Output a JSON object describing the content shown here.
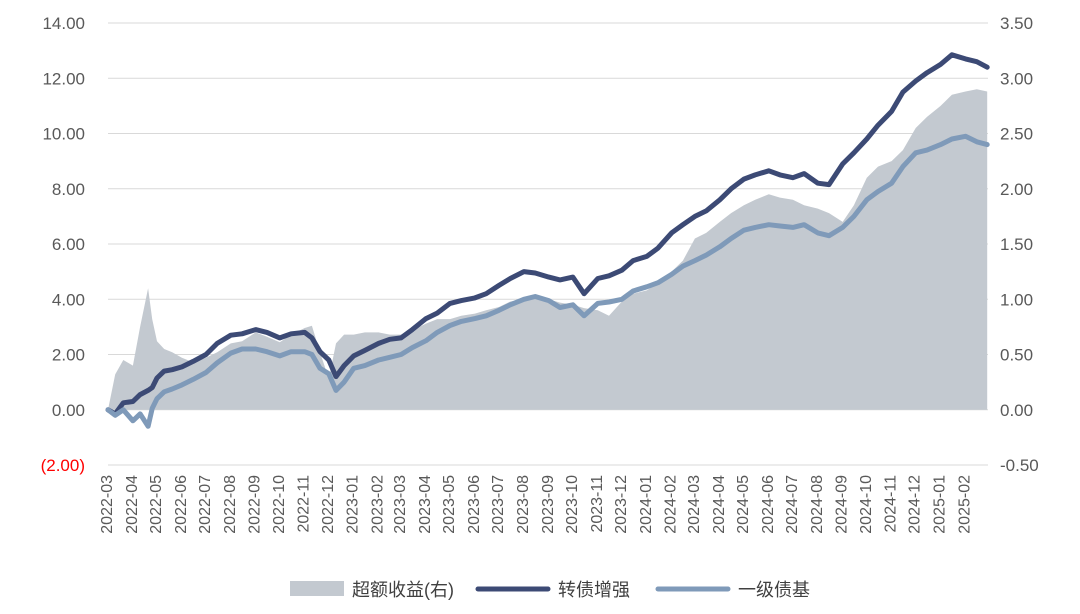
{
  "chart_data": {
    "type": "line",
    "left_axis": {
      "ylim": [
        -2,
        14
      ],
      "ticks": [
        "(2.00)",
        "0.00",
        "2.00",
        "4.00",
        "6.00",
        "8.00",
        "10.00",
        "12.00",
        "14.00"
      ],
      "tick_values": [
        -2,
        0,
        2,
        4,
        6,
        8,
        10,
        12,
        14
      ],
      "negative_tick_color": "#ff0000"
    },
    "right_axis": {
      "ylim": [
        -0.5,
        3.5
      ],
      "ticks": [
        "-0.50",
        "0.00",
        "0.50",
        "1.00",
        "1.50",
        "2.00",
        "2.50",
        "3.00",
        "3.50"
      ],
      "tick_values": [
        -0.5,
        0,
        0.5,
        1,
        1.5,
        2,
        2.5,
        3,
        3.5
      ]
    },
    "x_ticks": [
      "2022-03",
      "2022-04",
      "2022-05",
      "2022-06",
      "2022-07",
      "2022-08",
      "2022-09",
      "2022-10",
      "2022-11",
      "2022-12",
      "2023-01",
      "2023-02",
      "2023-03",
      "2023-04",
      "2023-05",
      "2023-06",
      "2023-07",
      "2023-08",
      "2023-09",
      "2023-10",
      "2023-11",
      "2023-12",
      "2024-01",
      "2024-02",
      "2024-03",
      "2024-04",
      "2024-05",
      "2024-06",
      "2024-07",
      "2024-08",
      "2024-09",
      "2024-10",
      "2024-11",
      "2024-12",
      "2025-01",
      "2025-02"
    ],
    "grid": true,
    "legend_position": "bottom",
    "series": [
      {
        "name": "超额收益(右)",
        "kind": "area",
        "axis": "right",
        "color": "#c3c9d0",
        "x": [
          "2022-03-01",
          "2022-03-10",
          "2022-03-20",
          "2022-04-01",
          "2022-04-10",
          "2022-04-20",
          "2022-04-25",
          "2022-05-01",
          "2022-05-10",
          "2022-05-20",
          "2022-06-01",
          "2022-06-15",
          "2022-07-01",
          "2022-07-15",
          "2022-08-01",
          "2022-08-15",
          "2022-09-01",
          "2022-09-15",
          "2022-10-01",
          "2022-10-15",
          "2022-11-01",
          "2022-11-10",
          "2022-11-20",
          "2022-12-01",
          "2022-12-10",
          "2022-12-20",
          "2023-01-01",
          "2023-01-15",
          "2023-02-01",
          "2023-02-15",
          "2023-03-01",
          "2023-03-15",
          "2023-04-01",
          "2023-04-15",
          "2023-05-01",
          "2023-05-15",
          "2023-06-01",
          "2023-06-15",
          "2023-07-01",
          "2023-07-15",
          "2023-08-01",
          "2023-08-15",
          "2023-09-01",
          "2023-09-15",
          "2023-10-01",
          "2023-10-15",
          "2023-11-01",
          "2023-11-15",
          "2023-12-01",
          "2023-12-15",
          "2024-01-01",
          "2024-01-15",
          "2024-02-01",
          "2024-02-15",
          "2024-03-01",
          "2024-03-15",
          "2024-04-01",
          "2024-04-15",
          "2024-05-01",
          "2024-05-15",
          "2024-06-01",
          "2024-06-15",
          "2024-07-01",
          "2024-07-15",
          "2024-08-01",
          "2024-08-15",
          "2024-09-01",
          "2024-09-15",
          "2024-10-01",
          "2024-10-15",
          "2024-11-01",
          "2024-11-15",
          "2024-12-01",
          "2024-12-15",
          "2025-01-01",
          "2025-01-15",
          "2025-02-01",
          "2025-02-15",
          "2025-02-28"
        ],
        "values": [
          0.0,
          0.32,
          0.45,
          0.4,
          0.75,
          1.1,
          0.82,
          0.62,
          0.55,
          0.52,
          0.47,
          0.43,
          0.47,
          0.52,
          0.6,
          0.62,
          0.7,
          0.66,
          0.61,
          0.68,
          0.74,
          0.76,
          0.52,
          0.28,
          0.6,
          0.68,
          0.68,
          0.7,
          0.7,
          0.68,
          0.68,
          0.72,
          0.78,
          0.82,
          0.82,
          0.85,
          0.87,
          0.9,
          0.93,
          0.98,
          1.0,
          1.04,
          1.0,
          0.97,
          0.95,
          0.92,
          0.9,
          0.85,
          0.98,
          1.05,
          1.08,
          1.15,
          1.25,
          1.35,
          1.55,
          1.6,
          1.7,
          1.78,
          1.85,
          1.9,
          1.95,
          1.92,
          1.9,
          1.85,
          1.82,
          1.78,
          1.7,
          1.85,
          2.1,
          2.2,
          2.25,
          2.35,
          2.55,
          2.65,
          2.75,
          2.85,
          2.88,
          2.9,
          2.88
        ]
      },
      {
        "name": "转债增强",
        "kind": "line",
        "axis": "left",
        "color": "#3c4a75",
        "x": [
          "2022-03-01",
          "2022-03-10",
          "2022-03-20",
          "2022-04-01",
          "2022-04-10",
          "2022-04-20",
          "2022-04-25",
          "2022-05-01",
          "2022-05-10",
          "2022-05-20",
          "2022-06-01",
          "2022-06-15",
          "2022-07-01",
          "2022-07-15",
          "2022-08-01",
          "2022-08-15",
          "2022-09-01",
          "2022-09-15",
          "2022-10-01",
          "2022-10-15",
          "2022-11-01",
          "2022-11-10",
          "2022-11-20",
          "2022-12-01",
          "2022-12-10",
          "2022-12-20",
          "2023-01-01",
          "2023-01-15",
          "2023-02-01",
          "2023-02-15",
          "2023-03-01",
          "2023-03-15",
          "2023-04-01",
          "2023-04-15",
          "2023-05-01",
          "2023-05-15",
          "2023-06-01",
          "2023-06-15",
          "2023-07-01",
          "2023-07-15",
          "2023-08-01",
          "2023-08-15",
          "2023-09-01",
          "2023-09-15",
          "2023-10-01",
          "2023-10-15",
          "2023-11-01",
          "2023-11-15",
          "2023-12-01",
          "2023-12-15",
          "2024-01-01",
          "2024-01-15",
          "2024-02-01",
          "2024-02-15",
          "2024-03-01",
          "2024-03-15",
          "2024-04-01",
          "2024-04-15",
          "2024-05-01",
          "2024-05-15",
          "2024-06-01",
          "2024-06-15",
          "2024-07-01",
          "2024-07-15",
          "2024-08-01",
          "2024-08-15",
          "2024-09-01",
          "2024-09-15",
          "2024-10-01",
          "2024-10-15",
          "2024-11-01",
          "2024-11-15",
          "2024-12-01",
          "2024-12-15",
          "2025-01-01",
          "2025-01-15",
          "2025-02-01",
          "2025-02-15",
          "2025-02-28"
        ],
        "values": [
          0.0,
          -0.15,
          0.25,
          0.3,
          0.55,
          0.7,
          0.8,
          1.15,
          1.4,
          1.45,
          1.55,
          1.75,
          2.0,
          2.4,
          2.7,
          2.75,
          2.9,
          2.8,
          2.6,
          2.75,
          2.8,
          2.6,
          2.1,
          1.8,
          1.2,
          1.6,
          1.95,
          2.15,
          2.4,
          2.55,
          2.6,
          2.9,
          3.3,
          3.5,
          3.85,
          3.95,
          4.05,
          4.2,
          4.5,
          4.75,
          5.0,
          4.95,
          4.8,
          4.7,
          4.8,
          4.2,
          4.75,
          4.85,
          5.05,
          5.4,
          5.55,
          5.85,
          6.4,
          6.7,
          7.0,
          7.2,
          7.6,
          8.0,
          8.35,
          8.5,
          8.65,
          8.5,
          8.4,
          8.55,
          8.2,
          8.15,
          8.9,
          9.3,
          9.8,
          10.3,
          10.8,
          11.5,
          11.9,
          12.2,
          12.5,
          12.85,
          12.7,
          12.6,
          12.4
        ]
      },
      {
        "name": "一级债基",
        "kind": "line",
        "axis": "left",
        "color": "#7f9ab9",
        "x": [
          "2022-03-01",
          "2022-03-10",
          "2022-03-20",
          "2022-04-01",
          "2022-04-10",
          "2022-04-20",
          "2022-04-25",
          "2022-05-01",
          "2022-05-10",
          "2022-05-20",
          "2022-06-01",
          "2022-06-15",
          "2022-07-01",
          "2022-07-15",
          "2022-08-01",
          "2022-08-15",
          "2022-09-01",
          "2022-09-15",
          "2022-10-01",
          "2022-10-15",
          "2022-11-01",
          "2022-11-10",
          "2022-11-20",
          "2022-12-01",
          "2022-12-10",
          "2022-12-20",
          "2023-01-01",
          "2023-01-15",
          "2023-02-01",
          "2023-02-15",
          "2023-03-01",
          "2023-03-15",
          "2023-04-01",
          "2023-04-15",
          "2023-05-01",
          "2023-05-15",
          "2023-06-01",
          "2023-06-15",
          "2023-07-01",
          "2023-07-15",
          "2023-08-01",
          "2023-08-15",
          "2023-09-01",
          "2023-09-15",
          "2023-10-01",
          "2023-10-15",
          "2023-11-01",
          "2023-11-15",
          "2023-12-01",
          "2023-12-15",
          "2024-01-01",
          "2024-01-15",
          "2024-02-01",
          "2024-02-15",
          "2024-03-01",
          "2024-03-15",
          "2024-04-01",
          "2024-04-15",
          "2024-05-01",
          "2024-05-15",
          "2024-06-01",
          "2024-06-15",
          "2024-07-01",
          "2024-07-15",
          "2024-08-01",
          "2024-08-15",
          "2024-09-01",
          "2024-09-15",
          "2024-10-01",
          "2024-10-15",
          "2024-11-01",
          "2024-11-15",
          "2024-12-01",
          "2024-12-15",
          "2025-01-01",
          "2025-01-15",
          "2025-02-01",
          "2025-02-15",
          "2025-02-28"
        ],
        "values": [
          0.0,
          -0.2,
          0.0,
          -0.4,
          -0.15,
          -0.6,
          0.05,
          0.4,
          0.65,
          0.75,
          0.9,
          1.1,
          1.35,
          1.7,
          2.05,
          2.2,
          2.2,
          2.1,
          1.95,
          2.1,
          2.1,
          2.0,
          1.5,
          1.3,
          0.7,
          1.0,
          1.5,
          1.6,
          1.8,
          1.9,
          2.0,
          2.25,
          2.5,
          2.8,
          3.05,
          3.2,
          3.3,
          3.4,
          3.6,
          3.8,
          4.0,
          4.1,
          3.95,
          3.7,
          3.8,
          3.4,
          3.85,
          3.9,
          4.0,
          4.3,
          4.45,
          4.6,
          4.9,
          5.2,
          5.4,
          5.6,
          5.9,
          6.2,
          6.5,
          6.6,
          6.7,
          6.65,
          6.6,
          6.7,
          6.4,
          6.3,
          6.6,
          7.0,
          7.6,
          7.9,
          8.2,
          8.8,
          9.3,
          9.4,
          9.6,
          9.8,
          9.9,
          9.7,
          9.6
        ]
      }
    ]
  }
}
